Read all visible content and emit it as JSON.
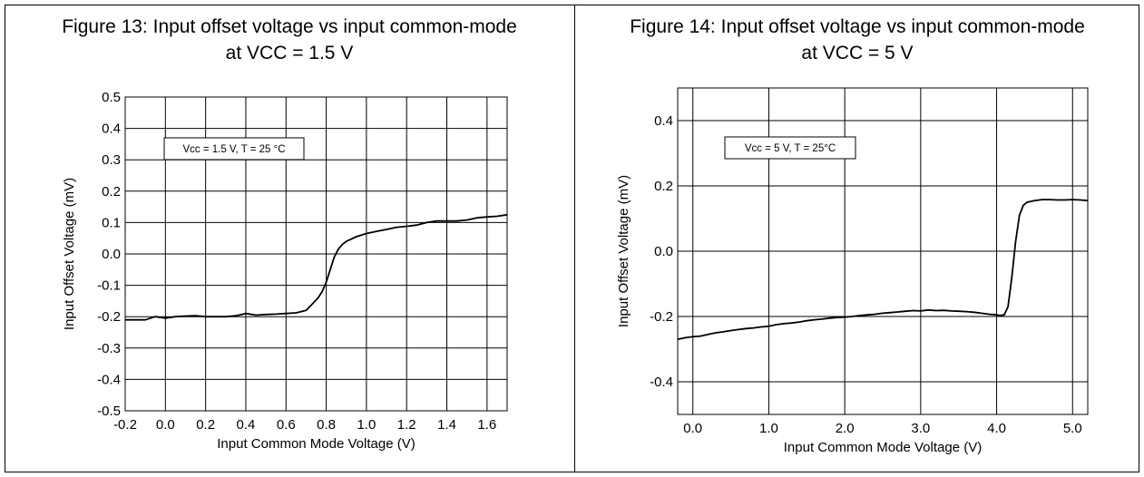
{
  "chart_data": [
    {
      "type": "line",
      "title_line1": "Figure 13: Input offset voltage vs input common-mode",
      "title_line2": "at VCC = 1.5 V",
      "xlabel": "Input Common Mode Voltage (V)",
      "ylabel": "Input Offset Voltage (mV)",
      "annotation": "Vcc = 1.5 V, T = 25 °C",
      "xlim": [
        -0.2,
        1.7
      ],
      "ylim": [
        -0.5,
        0.5
      ],
      "grid": true,
      "x_ticks": [
        "-0.2",
        "0.0",
        "0.2",
        "0.4",
        "0.6",
        "0.8",
        "1.0",
        "1.2",
        "1.4",
        "1.6"
      ],
      "y_ticks": [
        "0.5",
        "0.4",
        "0.3",
        "0.2",
        "0.1",
        "0.0",
        "-0.1",
        "-0.2",
        "-0.3",
        "-0.4",
        "-0.5"
      ],
      "series": [
        {
          "x": [
            -0.2,
            -0.15,
            -0.1,
            -0.05,
            0.0,
            0.05,
            0.1,
            0.15,
            0.2,
            0.25,
            0.3,
            0.35,
            0.4,
            0.45,
            0.5,
            0.55,
            0.6,
            0.65,
            0.7,
            0.73,
            0.76,
            0.78,
            0.8,
            0.82,
            0.84,
            0.86,
            0.88,
            0.9,
            0.95,
            1.0,
            1.05,
            1.1,
            1.15,
            1.2,
            1.25,
            1.3,
            1.35,
            1.4,
            1.45,
            1.5,
            1.55,
            1.6,
            1.65,
            1.7
          ],
          "y": [
            -0.21,
            -0.21,
            -0.21,
            -0.2,
            -0.205,
            -0.2,
            -0.198,
            -0.197,
            -0.2,
            -0.2,
            -0.2,
            -0.197,
            -0.19,
            -0.195,
            -0.193,
            -0.192,
            -0.19,
            -0.188,
            -0.18,
            -0.16,
            -0.14,
            -0.12,
            -0.09,
            -0.05,
            -0.01,
            0.015,
            0.03,
            0.04,
            0.055,
            0.065,
            0.072,
            0.078,
            0.085,
            0.088,
            0.092,
            0.1,
            0.105,
            0.105,
            0.105,
            0.108,
            0.115,
            0.118,
            0.12,
            0.125
          ]
        }
      ]
    },
    {
      "type": "line",
      "title_line1": "Figure 14: Input offset voltage vs input common-mode",
      "title_line2": "at VCC = 5 V",
      "xlabel": "Input Common Mode Voltage (V)",
      "ylabel": "Input Offset Voltage (mV)",
      "annotation": "Vcc = 5 V, T = 25°C",
      "xlim": [
        -0.2,
        5.2
      ],
      "ylim": [
        -0.5,
        0.5
      ],
      "grid": true,
      "x_ticks": [
        "0.0",
        "1.0",
        "2.0",
        "3.0",
        "4.0",
        "5.0"
      ],
      "y_ticks": [
        "0.4",
        "0.2",
        "0.0",
        "-0.2",
        "-0.4"
      ],
      "series": [
        {
          "x": [
            -0.2,
            -0.1,
            0.0,
            0.1,
            0.2,
            0.3,
            0.4,
            0.5,
            0.6,
            0.7,
            0.8,
            0.9,
            1.0,
            1.1,
            1.2,
            1.3,
            1.4,
            1.5,
            1.6,
            1.7,
            1.8,
            1.9,
            2.0,
            2.1,
            2.2,
            2.3,
            2.4,
            2.5,
            2.6,
            2.7,
            2.8,
            2.9,
            3.0,
            3.1,
            3.2,
            3.3,
            3.4,
            3.5,
            3.6,
            3.7,
            3.8,
            3.9,
            4.0,
            4.05,
            4.1,
            4.15,
            4.2,
            4.25,
            4.3,
            4.35,
            4.4,
            4.5,
            4.6,
            4.7,
            4.8,
            4.9,
            5.0,
            5.1,
            5.2
          ],
          "y": [
            -0.27,
            -0.265,
            -0.262,
            -0.26,
            -0.255,
            -0.25,
            -0.247,
            -0.243,
            -0.24,
            -0.237,
            -0.235,
            -0.232,
            -0.23,
            -0.225,
            -0.222,
            -0.22,
            -0.217,
            -0.213,
            -0.21,
            -0.208,
            -0.205,
            -0.203,
            -0.202,
            -0.2,
            -0.197,
            -0.195,
            -0.193,
            -0.19,
            -0.188,
            -0.186,
            -0.184,
            -0.182,
            -0.183,
            -0.18,
            -0.182,
            -0.181,
            -0.183,
            -0.184,
            -0.185,
            -0.187,
            -0.19,
            -0.193,
            -0.195,
            -0.197,
            -0.195,
            -0.17,
            -0.08,
            0.03,
            0.11,
            0.14,
            0.15,
            0.155,
            0.158,
            0.158,
            0.157,
            0.157,
            0.158,
            0.157,
            0.155
          ]
        }
      ]
    }
  ]
}
